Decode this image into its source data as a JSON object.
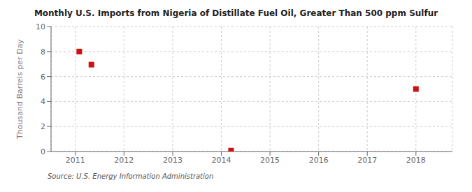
{
  "chart_data": {
    "type": "scatter",
    "title": "Monthly U.S. Imports from Nigeria of Distillate Fuel Oil, Greater Than 500 ppm Sulfur",
    "ylabel": "Thousand Barrels per Day",
    "annotations": [
      "Source: U.S. Energy Information Administration"
    ],
    "x": [
      2011.08,
      2011.33,
      2014.2,
      2018.0
    ],
    "values": [
      8.0,
      6.95,
      0.07,
      5.0
    ],
    "color": "#cc1111",
    "marker": "square",
    "xlim": [
      2010.5,
      2018.75
    ],
    "xticks": [
      2011,
      2012,
      2013,
      2014,
      2015,
      2016,
      2017,
      2018
    ],
    "ylim": [
      0,
      10
    ],
    "yticks": [
      0,
      2,
      4,
      6,
      8,
      10
    ],
    "grid": true
  }
}
